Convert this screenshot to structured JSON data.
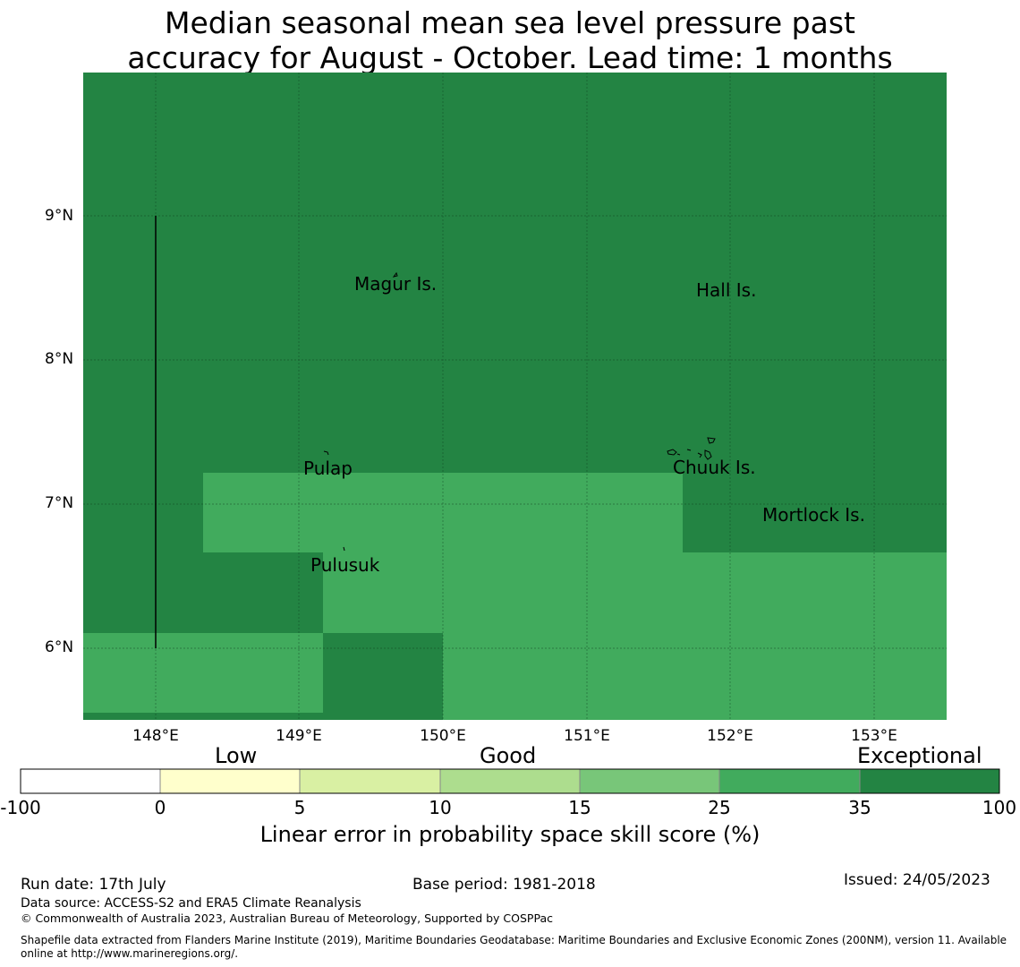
{
  "title_line1": "Median seasonal mean sea level pressure past",
  "title_line2": "accuracy for August - October. Lead time: 1 months",
  "map": {
    "lat_labels": [
      "9°N",
      "8°N",
      "7°N",
      "6°N"
    ],
    "lon_labels": [
      "148°E",
      "149°E",
      "150°E",
      "151°E",
      "152°E",
      "153°E"
    ],
    "places": {
      "magur": "Magur Is.",
      "hall": "Hall Is.",
      "pulap": "Pulap",
      "chuuk": "Chuuk Is.",
      "mortlock": "Mortlock Is.",
      "pulusuk": "Pulusuk"
    },
    "colors": {
      "exceptional": "#238443",
      "very_good": "#41ab5d"
    }
  },
  "colorbar": {
    "categories": [
      "Low",
      "Good",
      "Exceptional"
    ],
    "ticks": [
      "-100",
      "0",
      "5",
      "10",
      "15",
      "25",
      "35",
      "100"
    ],
    "colors": [
      "#ffffff",
      "#ffffcc",
      "#d9f0a3",
      "#addd8e",
      "#78c679",
      "#41ab5d",
      "#238443"
    ],
    "label": "Linear error in probability space skill score (%)"
  },
  "footer": {
    "run_date": "Run date: 17th July",
    "base_period": "Base period: 1981-2018",
    "issued": "Issued: 24/05/2023",
    "data_source": "Data source: ACCESS-S2 and ERA5 Climate Reanalysis",
    "copyright": "© Commonwealth of Australia 2023, Australian Bureau of Meteorology, Supported by COSPPac",
    "shapefile_line1": "Shapefile data extracted from Flanders Marine Institute (2019), Maritime Boundaries Geodatabase: Maritime Boundaries and Exclusive Economic Zones (200NM), version 11. Available",
    "shapefile_line2": "online at http://www.marineregions.org/."
  }
}
